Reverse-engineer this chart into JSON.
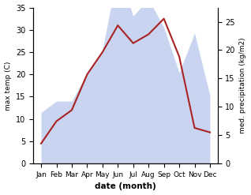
{
  "months": [
    "Jan",
    "Feb",
    "Mar",
    "Apr",
    "May",
    "Jun",
    "Jul",
    "Aug",
    "Sep",
    "Oct",
    "Nov",
    "Dec"
  ],
  "temperature": [
    4.5,
    9.5,
    12.0,
    20.0,
    25.0,
    31.0,
    27.0,
    29.0,
    32.5,
    24.0,
    8.0,
    7.0
  ],
  "precipitation": [
    9,
    11,
    11,
    16,
    20,
    34,
    26,
    29,
    24,
    16,
    23,
    12
  ],
  "temp_color": "#aa2222",
  "precip_color_fill": "#c8d4f0",
  "temp_ylim": [
    0,
    35
  ],
  "precip_ylim": [
    0,
    27.5
  ],
  "temp_yticks": [
    0,
    5,
    10,
    15,
    20,
    25,
    30,
    35
  ],
  "precip_yticks": [
    0,
    5,
    10,
    15,
    20,
    25
  ],
  "ylabel_left": "max temp (C)",
  "ylabel_right": "med. precipitation (kg/m2)",
  "xlabel": "date (month)",
  "background_color": "#ffffff"
}
